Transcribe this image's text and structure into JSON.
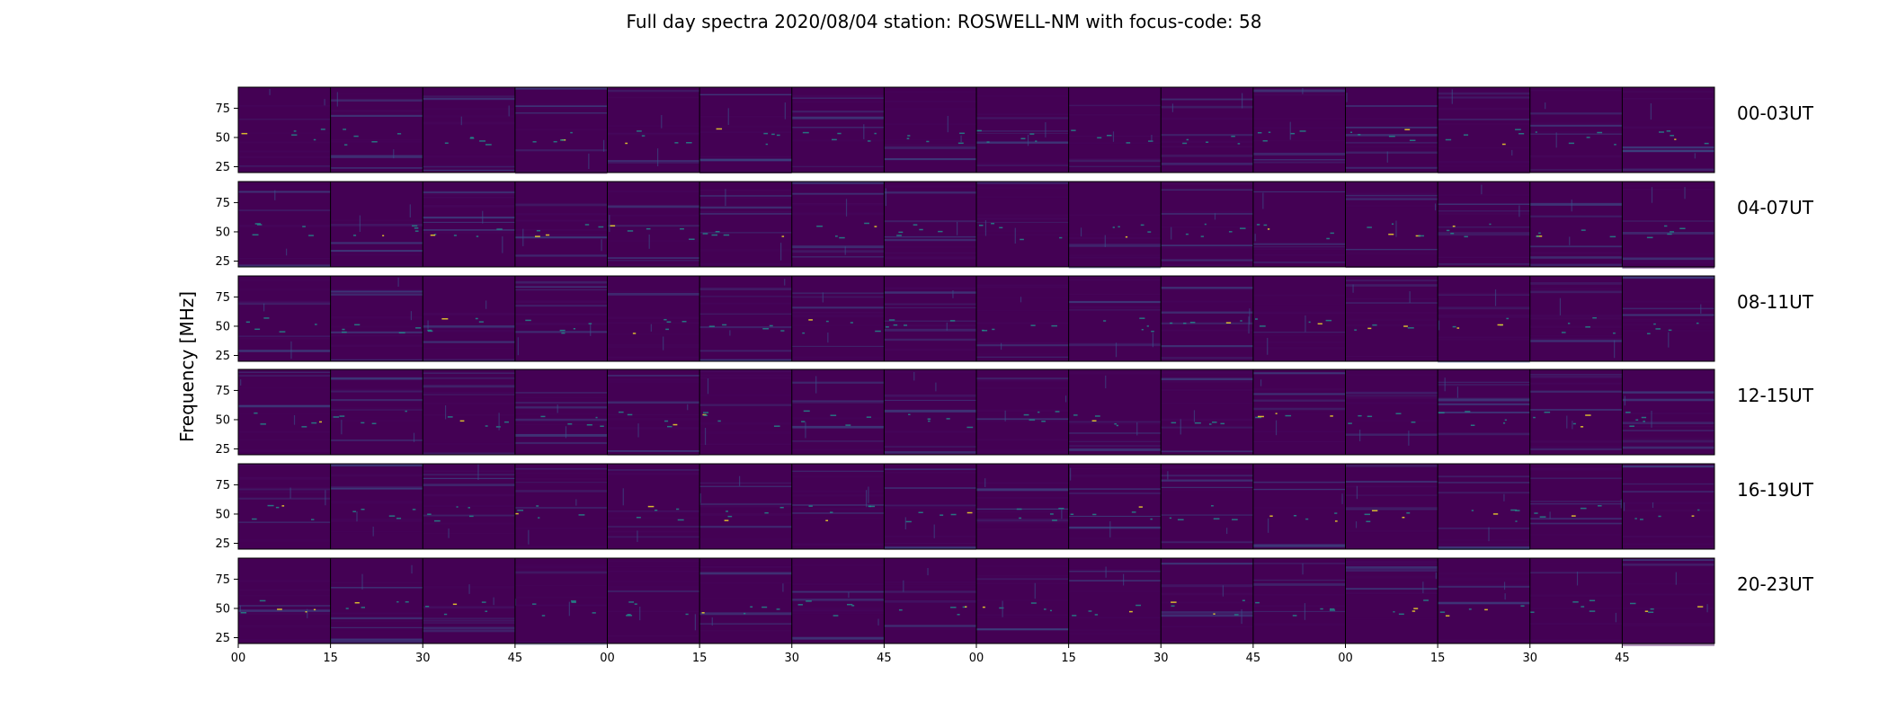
{
  "chart_data": {
    "type": "heatmap",
    "title": "Full day spectra 2020/08/04 station: ROSWELL-NM with focus-code: 58",
    "ylabel": "Frequency [MHz]",
    "xlabel": "",
    "y_ticks": [
      25,
      50,
      75
    ],
    "ylim": [
      20,
      93
    ],
    "x_ticks": [
      "00",
      "15",
      "30",
      "45",
      "00",
      "15",
      "30",
      "45",
      "00",
      "15",
      "30",
      "45",
      "00",
      "15",
      "30",
      "45"
    ],
    "rows": [
      {
        "label": "00-03UT"
      },
      {
        "label": "04-07UT"
      },
      {
        "label": "08-11UT"
      },
      {
        "label": "12-15UT"
      },
      {
        "label": "16-19UT"
      },
      {
        "label": "20-23UT"
      }
    ],
    "panels_per_row": 16,
    "minutes_per_panel": 15,
    "colormap": "viridis",
    "colors": {
      "background": "#440154",
      "low": "#46085c",
      "mid": "#3b528b",
      "high": "#21918c",
      "peak": "#fde725"
    }
  }
}
